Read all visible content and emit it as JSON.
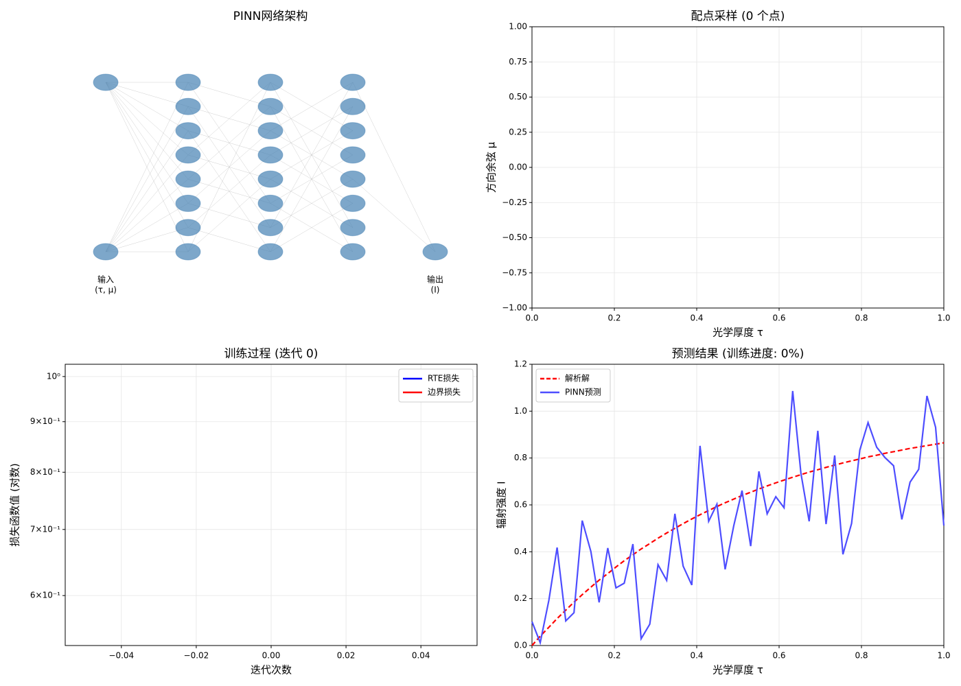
{
  "chart_data": [
    {
      "type": "network",
      "title": "PINN网络架构",
      "layers": [
        2,
        8,
        8,
        8,
        1
      ],
      "color": "#4682b4",
      "input_label": [
        "输入",
        "(τ, μ)"
      ],
      "output_label": [
        "输出",
        "(I)"
      ]
    },
    {
      "type": "scatter",
      "title": "配点采样 (0 个点)",
      "x_label": "光学厚度 τ",
      "y_label": "方向余弦 μ",
      "xlim": [
        0,
        1
      ],
      "ylim": [
        -1,
        1
      ],
      "xticks": [
        {
          "value": 0,
          "label": "0.0"
        },
        0.2,
        0.4,
        0.6,
        0.8,
        {
          "value": 1,
          "label": "1.0"
        }
      ],
      "yticks": [
        {
          "value": -1,
          "label": "−1.00"
        },
        {
          "value": -0.75,
          "label": "−0.75"
        },
        {
          "value": -0.5,
          "label": "−0.50"
        },
        {
          "value": -0.25,
          "label": "−0.25"
        },
        {
          "value": 0,
          "label": "0.00"
        },
        0.25,
        {
          "value": 0.5,
          "label": "0.50"
        },
        0.75,
        {
          "value": 1,
          "label": "1.00"
        }
      ],
      "grid": true
    },
    {
      "type": "line",
      "title": "训练过程 (迭代 0)",
      "x_label": "迭代次数",
      "y_label": "损失函数值 (对数)",
      "yscale": "log",
      "xlim": [
        -0.055,
        0.055
      ],
      "ylim": [
        0.534,
        1.029
      ],
      "xticks": [
        {
          "value": -0.04,
          "label": "−0.04"
        },
        {
          "value": -0.02,
          "label": "−0.02"
        },
        {
          "value": 0,
          "label": "0.00"
        },
        0.02,
        0.04
      ],
      "yticks": [
        {
          "value": 0.6,
          "label": "6×10⁻¹"
        },
        {
          "value": 0.7,
          "label": "7×10⁻¹"
        },
        {
          "value": 0.8,
          "label": "8×10⁻¹"
        },
        {
          "value": 0.9,
          "label": "9×10⁻¹"
        },
        {
          "value": 1,
          "label": "10⁰"
        }
      ],
      "grid": true,
      "legend": "upper right",
      "x": [],
      "series": [
        {
          "name": "RTE损失",
          "color": "#0000ff",
          "values": []
        },
        {
          "name": "边界损失",
          "color": "#ff0000",
          "values": []
        }
      ]
    },
    {
      "type": "line",
      "title": "预测结果 (训练进度: 0%)",
      "x_label": "光学厚度 τ",
      "y_label": "辐射强度 I",
      "xlim": [
        0,
        1
      ],
      "ylim": [
        0,
        1.2
      ],
      "xticks": [
        {
          "value": 0,
          "label": "0.0"
        },
        0.2,
        0.4,
        0.6,
        0.8,
        {
          "value": 1,
          "label": "1.0"
        }
      ],
      "yticks": [
        {
          "value": 0,
          "label": "0.0"
        },
        0.2,
        0.4,
        0.6,
        0.8,
        {
          "value": 1,
          "label": "1.0"
        },
        1.2
      ],
      "grid": true,
      "legend": "upper left",
      "x": [
        0,
        0.02,
        0.041,
        0.061,
        0.082,
        0.102,
        0.122,
        0.143,
        0.163,
        0.184,
        0.204,
        0.224,
        0.245,
        0.265,
        0.286,
        0.306,
        0.327,
        0.347,
        0.367,
        0.388,
        0.408,
        0.429,
        0.449,
        0.469,
        0.49,
        0.51,
        0.531,
        0.551,
        0.571,
        0.592,
        0.612,
        0.633,
        0.653,
        0.673,
        0.694,
        0.714,
        0.735,
        0.755,
        0.776,
        0.796,
        0.816,
        0.837,
        0.857,
        0.878,
        0.898,
        0.918,
        0.939,
        0.959,
        0.98,
        1.0
      ],
      "series": [
        {
          "name": "解析解",
          "color": "#ff0000",
          "dashed": true,
          "values": [
            0,
            0.04,
            0.078,
            0.115,
            0.151,
            0.185,
            0.217,
            0.249,
            0.279,
            0.307,
            0.335,
            0.362,
            0.387,
            0.412,
            0.435,
            0.458,
            0.48,
            0.5,
            0.52,
            0.54,
            0.558,
            0.576,
            0.593,
            0.609,
            0.625,
            0.64,
            0.654,
            0.668,
            0.681,
            0.694,
            0.706,
            0.718,
            0.729,
            0.74,
            0.75,
            0.76,
            0.77,
            0.779,
            0.788,
            0.796,
            0.805,
            0.812,
            0.82,
            0.827,
            0.834,
            0.841,
            0.847,
            0.853,
            0.859,
            0.865
          ]
        },
        {
          "name": "PINN预测",
          "color": "#4d4dff",
          "values": [
            0.102,
            0.012,
            0.193,
            0.418,
            0.105,
            0.14,
            0.533,
            0.401,
            0.184,
            0.416,
            0.246,
            0.266,
            0.433,
            0.029,
            0.091,
            0.345,
            0.278,
            0.562,
            0.339,
            0.258,
            0.852,
            0.53,
            0.603,
            0.325,
            0.512,
            0.661,
            0.424,
            0.743,
            0.562,
            0.635,
            0.588,
            1.086,
            0.735,
            0.53,
            0.916,
            0.518,
            0.811,
            0.389,
            0.521,
            0.834,
            0.951,
            0.846,
            0.802,
            0.767,
            0.538,
            0.697,
            0.752,
            1.065,
            0.931,
            0.512
          ]
        }
      ]
    }
  ]
}
